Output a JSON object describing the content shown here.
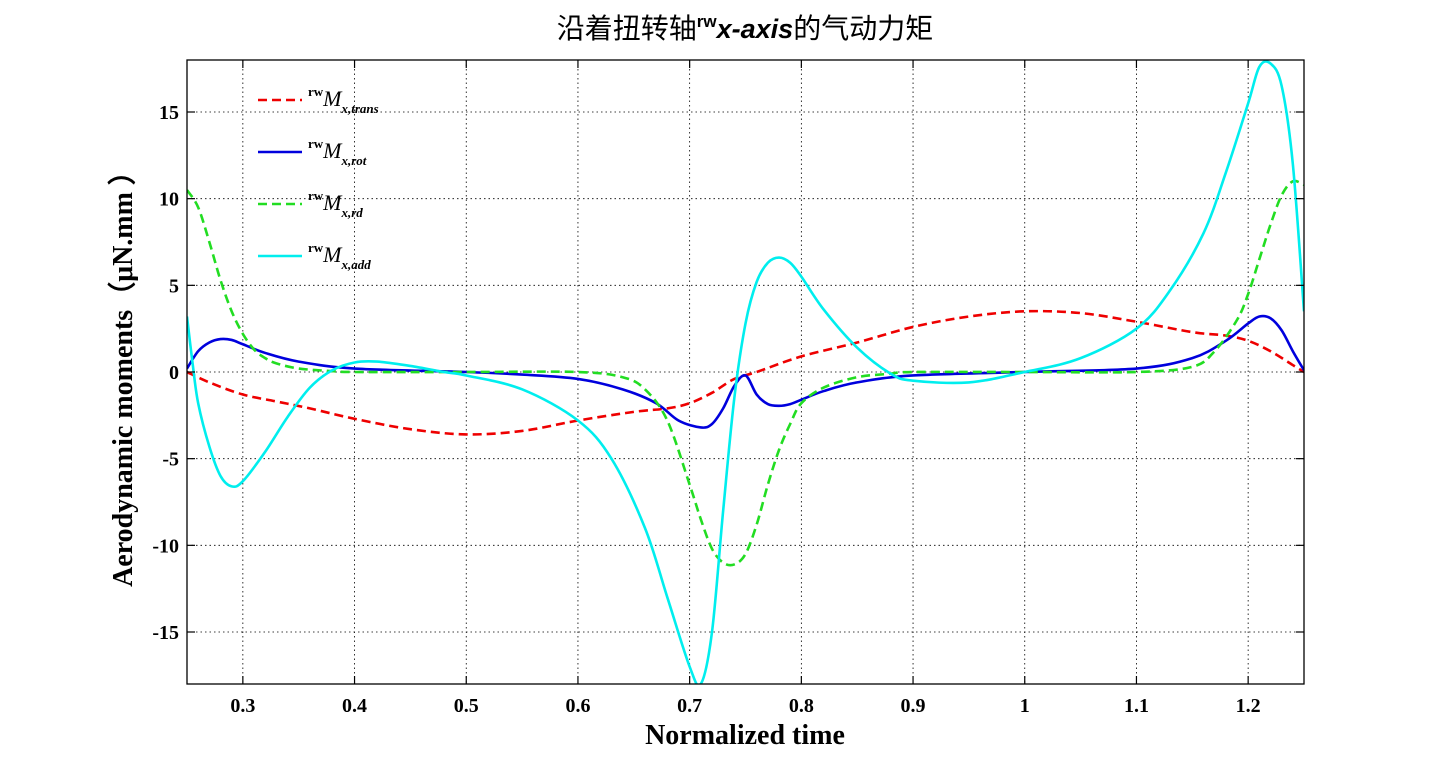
{
  "chart_data": {
    "type": "line",
    "title_parts": {
      "prefix": "沿着扭转轴",
      "sup": "rw",
      "italic": "x-axis",
      "suffix": "的气动力矩"
    },
    "xlabel": "Normalized time",
    "ylabel": "Aerodynamic moments（μN.mm ）",
    "xlim": [
      0.25,
      1.25
    ],
    "ylim": [
      -18,
      18
    ],
    "xticks": [
      0.3,
      0.4,
      0.5,
      0.6,
      0.7,
      0.8,
      0.9,
      1,
      1.1,
      1.2
    ],
    "xtick_labels": [
      "0.3",
      "0.4",
      "0.5",
      "0.6",
      "0.7",
      "0.8",
      "0.9",
      "1",
      "1.1",
      "1.2"
    ],
    "yticks": [
      -15,
      -10,
      -5,
      0,
      5,
      10,
      15
    ],
    "ytick_labels": [
      "-15",
      "-10",
      "-5",
      "0",
      "5",
      "10",
      "15"
    ],
    "grid": true,
    "legend_position": "top-left",
    "series": [
      {
        "sup": "rw",
        "base": "M",
        "sub": "x,trans",
        "color": "#ee0000",
        "dash": "dashed",
        "x": [
          0.25,
          0.27,
          0.3,
          0.33,
          0.36,
          0.4,
          0.45,
          0.5,
          0.55,
          0.6,
          0.65,
          0.68,
          0.7,
          0.72,
          0.74,
          0.76,
          0.8,
          0.85,
          0.9,
          0.95,
          1.0,
          1.05,
          1.1,
          1.15,
          1.18,
          1.2,
          1.22,
          1.24,
          1.25
        ],
        "y": [
          0,
          -0.6,
          -1.3,
          -1.7,
          -2.1,
          -2.7,
          -3.3,
          -3.6,
          -3.4,
          -2.8,
          -2.3,
          -2.1,
          -1.8,
          -1.2,
          -0.4,
          0,
          0.9,
          1.7,
          2.6,
          3.2,
          3.5,
          3.4,
          2.9,
          2.3,
          2.1,
          1.8,
          1.2,
          0.4,
          0
        ]
      },
      {
        "sup": "rw",
        "base": "M",
        "sub": "x,rot",
        "color": "#0000dd",
        "dash": "solid",
        "x": [
          0.25,
          0.26,
          0.27,
          0.28,
          0.29,
          0.3,
          0.32,
          0.35,
          0.4,
          0.5,
          0.55,
          0.6,
          0.64,
          0.67,
          0.69,
          0.71,
          0.72,
          0.73,
          0.74,
          0.75,
          0.76,
          0.77,
          0.78,
          0.79,
          0.8,
          0.82,
          0.85,
          0.9,
          1.0,
          1.1,
          1.15,
          1.18,
          1.2,
          1.21,
          1.22,
          1.23,
          1.24,
          1.25
        ],
        "y": [
          0.2,
          1.2,
          1.7,
          1.9,
          1.85,
          1.6,
          1.1,
          0.6,
          0.2,
          0,
          -0.15,
          -0.4,
          -1.0,
          -1.8,
          -2.8,
          -3.2,
          -3.0,
          -2.1,
          -0.8,
          -0.2,
          -1.3,
          -1.85,
          -1.95,
          -1.85,
          -1.6,
          -1.1,
          -0.6,
          -0.2,
          0,
          0.2,
          0.8,
          1.8,
          2.8,
          3.2,
          3.1,
          2.4,
          1.2,
          0.1
        ]
      },
      {
        "sup": "rw",
        "base": "M",
        "sub": "x,rd",
        "color": "#22dd22",
        "dash": "dashed",
        "x": [
          0.25,
          0.26,
          0.27,
          0.28,
          0.29,
          0.3,
          0.31,
          0.32,
          0.33,
          0.35,
          0.38,
          0.4,
          0.5,
          0.6,
          0.64,
          0.66,
          0.68,
          0.7,
          0.71,
          0.72,
          0.73,
          0.74,
          0.75,
          0.76,
          0.77,
          0.78,
          0.79,
          0.8,
          0.82,
          0.85,
          0.88,
          0.9,
          1.0,
          1.1,
          1.15,
          1.17,
          1.19,
          1.2,
          1.21,
          1.22,
          1.23,
          1.24,
          1.25
        ],
        "y": [
          10.5,
          9.5,
          7.5,
          5.3,
          3.5,
          2.2,
          1.3,
          0.8,
          0.5,
          0.2,
          0.05,
          0,
          0,
          0,
          -0.3,
          -1.0,
          -2.8,
          -6.5,
          -8.5,
          -10.2,
          -11.0,
          -11.1,
          -10.5,
          -8.8,
          -6.5,
          -4.5,
          -3.0,
          -1.8,
          -0.9,
          -0.3,
          -0.1,
          0,
          0,
          0,
          0.3,
          1.2,
          3.0,
          4.5,
          6.5,
          8.5,
          10.2,
          11.0,
          10.8
        ]
      },
      {
        "sup": "rw",
        "base": "M",
        "sub": "x,add",
        "color": "#00eeee",
        "dash": "solid",
        "x": [
          0.25,
          0.255,
          0.26,
          0.27,
          0.28,
          0.29,
          0.3,
          0.32,
          0.34,
          0.36,
          0.38,
          0.4,
          0.42,
          0.45,
          0.48,
          0.5,
          0.55,
          0.6,
          0.63,
          0.66,
          0.68,
          0.7,
          0.71,
          0.72,
          0.73,
          0.74,
          0.75,
          0.76,
          0.77,
          0.78,
          0.79,
          0.8,
          0.82,
          0.85,
          0.88,
          0.9,
          0.95,
          1.0,
          1.05,
          1.1,
          1.13,
          1.16,
          1.18,
          1.2,
          1.21,
          1.22,
          1.23,
          1.24,
          1.25
        ],
        "y": [
          3.2,
          0.5,
          -1.8,
          -4.3,
          -6.0,
          -6.6,
          -6.3,
          -4.6,
          -2.6,
          -0.9,
          0.1,
          0.55,
          0.6,
          0.35,
          0,
          -0.2,
          -1.0,
          -2.8,
          -5.0,
          -9.0,
          -13.0,
          -17.0,
          -18.0,
          -15.0,
          -8.0,
          -1.5,
          2.8,
          5.2,
          6.3,
          6.6,
          6.3,
          5.5,
          3.6,
          1.4,
          -0.1,
          -0.5,
          -0.6,
          0,
          0.8,
          2.5,
          4.7,
          8.0,
          11.5,
          15.5,
          17.6,
          17.8,
          16.5,
          12.0,
          3.5
        ]
      }
    ]
  }
}
